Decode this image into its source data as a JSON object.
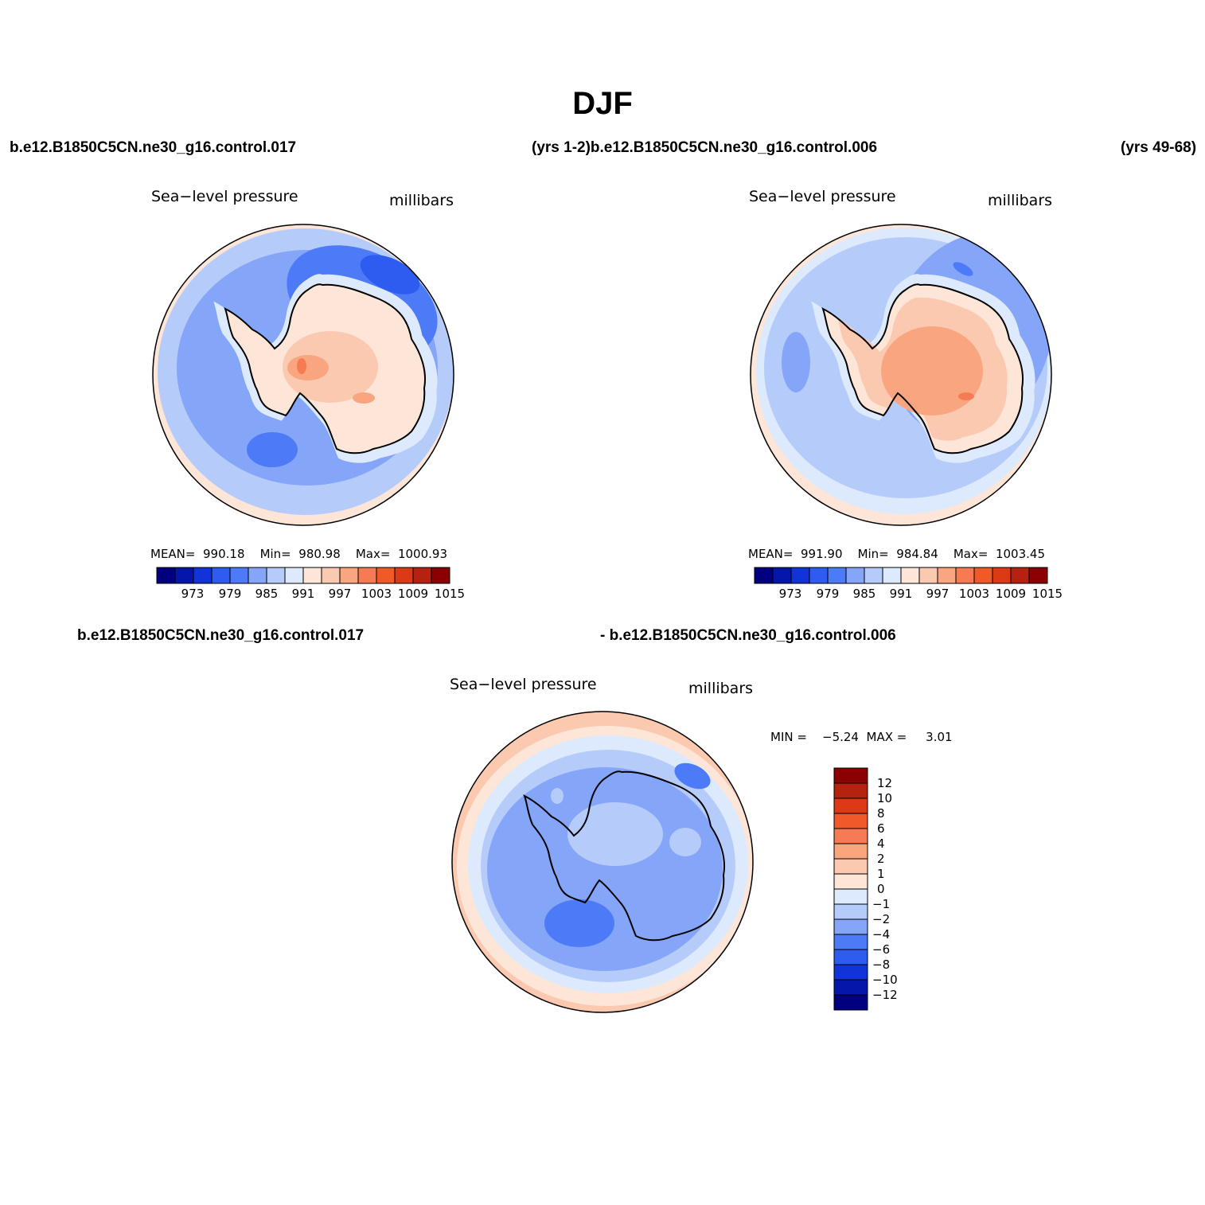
{
  "title": "DJF",
  "header": {
    "case_a": "b.e12.B1850C5CN.ne30_g16.control.017",
    "years_a_case_b": "(yrs 1-2)b.e12.B1850C5CN.ne30_g16.control.006",
    "years_b": "(yrs 49-68)",
    "diff_case_a": "b.e12.B1850C5CN.ne30_g16.control.017",
    "diff_case_b": "- b.e12.B1850C5CN.ne30_g16.control.006"
  },
  "panels": [
    {
      "variable": "Sea−level pressure",
      "units": "millibars",
      "stats": "MEAN=  990.18    Min=  980.98    Max=  1000.93"
    },
    {
      "variable": "Sea−level pressure",
      "units": "millibars",
      "stats": "MEAN=  991.90    Min=  984.84    Max=  1003.45"
    },
    {
      "variable": "Sea−level pressure",
      "units": "millibars",
      "stats": "MIN =    −5.24  MAX =     3.01"
    }
  ],
  "colorbar_top": {
    "labels": [
      "973",
      "979",
      "985",
      "991",
      "997",
      "1003",
      "1009",
      "1015"
    ],
    "colors": [
      "#03007f",
      "#0517a8",
      "#1233d8",
      "#2e5cf0",
      "#4d7af6",
      "#85a5f8",
      "#b5ccfa",
      "#ddeafe",
      "#fde6d8",
      "#fbc8b0",
      "#f8a580",
      "#f67b52",
      "#f05a28",
      "#dc3a14",
      "#b62210",
      "#8b0000"
    ]
  },
  "colorbar_diff": {
    "labels": [
      "12",
      "10",
      "8",
      "6",
      "4",
      "2",
      "1",
      "0",
      "−1",
      "−2",
      "−4",
      "−6",
      "−8",
      "−10",
      "−12"
    ],
    "colors_top_to_bottom": [
      "#8b0000",
      "#b62210",
      "#dc3a14",
      "#f05a28",
      "#f67b52",
      "#f8a580",
      "#fbc8b0",
      "#fde6d8",
      "#ddeafe",
      "#b5ccfa",
      "#85a5f8",
      "#4d7af6",
      "#2e5cf0",
      "#1233d8",
      "#0517a8",
      "#03007f"
    ]
  },
  "chart_data": {
    "type": "polar_contour_map",
    "region": "Antarctica (south polar stereographic)",
    "season": "DJF",
    "variable": "Sea-level pressure",
    "units": "millibars",
    "panels": [
      {
        "case": "b.e12.B1850C5CN.ne30_g16.control.017",
        "years": "1-2",
        "mean": 990.18,
        "min": 980.98,
        "max": 1000.93,
        "contour_levels": [
          973,
          976,
          979,
          982,
          985,
          988,
          991,
          994,
          997,
          1000,
          1003,
          1006,
          1009,
          1012,
          1015
        ]
      },
      {
        "case": "b.e12.B1850C5CN.ne30_g16.control.006",
        "years": "49-68",
        "mean": 991.9,
        "min": 984.84,
        "max": 1003.45,
        "contour_levels": [
          973,
          976,
          979,
          982,
          985,
          988,
          991,
          994,
          997,
          1000,
          1003,
          1006,
          1009,
          1012,
          1015
        ]
      },
      {
        "case": "difference (017 - 006)",
        "min": -5.24,
        "max": 3.01,
        "contour_levels": [
          -12,
          -10,
          -8,
          -6,
          -4,
          -2,
          -1,
          0,
          1,
          2,
          4,
          6,
          8,
          10,
          12
        ]
      }
    ]
  }
}
